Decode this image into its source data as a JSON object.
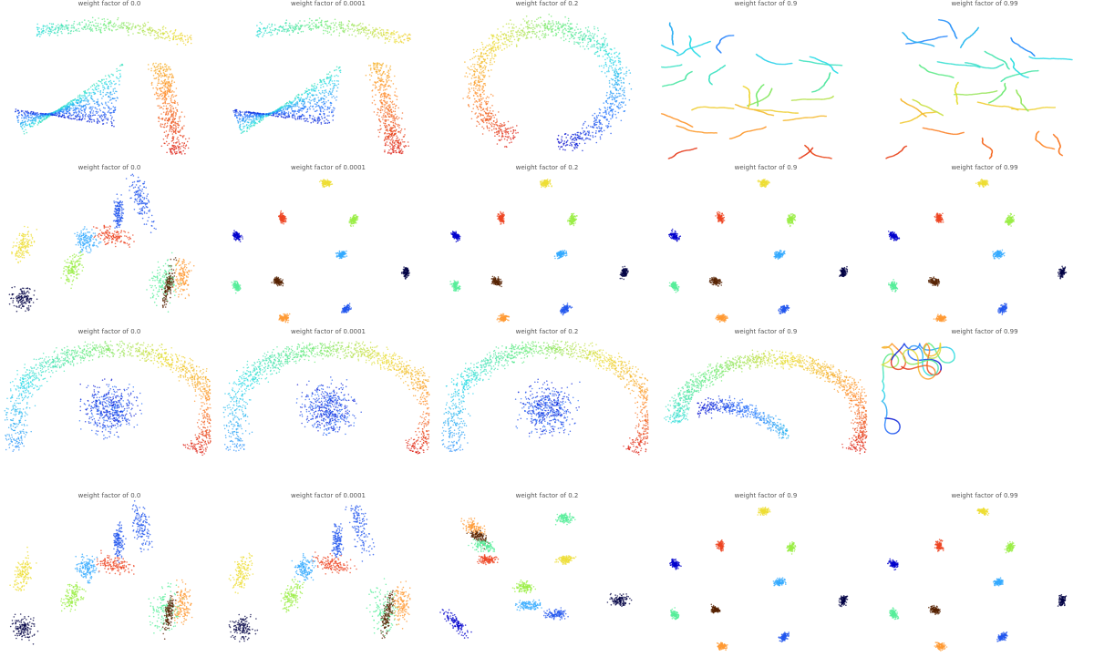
{
  "chart_data": [
    {
      "type": "scatter",
      "title": "weight factor of 0.0",
      "shape": "arch",
      "row": 0,
      "col": 0
    },
    {
      "type": "scatter",
      "title": "weight factor of 0.0001",
      "shape": "arch",
      "row": 0,
      "col": 1
    },
    {
      "type": "scatter",
      "title": "weight factor of 0.2",
      "shape": "ring-open",
      "row": 0,
      "col": 2
    },
    {
      "type": "scatter",
      "title": "weight factor of 0.9",
      "shape": "worms",
      "row": 0,
      "col": 3
    },
    {
      "type": "scatter",
      "title": "weight factor of 0.99",
      "shape": "worms",
      "row": 0,
      "col": 4
    },
    {
      "type": "scatter",
      "title": "weight factor of 0.0",
      "shape": "clusters-merged",
      "row": 1,
      "col": 0
    },
    {
      "type": "scatter",
      "title": "weight factor of 0.0001",
      "shape": "clusters-separated",
      "row": 1,
      "col": 1
    },
    {
      "type": "scatter",
      "title": "weight factor of 0.2",
      "shape": "clusters-separated",
      "row": 1,
      "col": 2
    },
    {
      "type": "scatter",
      "title": "weight factor of 0.9",
      "shape": "clusters-separated",
      "row": 1,
      "col": 3
    },
    {
      "type": "scatter",
      "title": "weight factor of 0.99",
      "shape": "clusters-separated",
      "row": 1,
      "col": 4
    },
    {
      "type": "scatter",
      "title": "weight factor of 0.0",
      "shape": "swissroll",
      "row": 2,
      "col": 0
    },
    {
      "type": "scatter",
      "title": "weight factor of 0.0001",
      "shape": "swissroll",
      "row": 2,
      "col": 1
    },
    {
      "type": "scatter",
      "title": "weight factor of 0.2",
      "shape": "swissroll",
      "row": 2,
      "col": 2
    },
    {
      "type": "scatter",
      "title": "weight factor of 0.9",
      "shape": "swissroll-open",
      "row": 2,
      "col": 3
    },
    {
      "type": "scatter",
      "title": "weight factor of 0.99",
      "shape": "curve",
      "row": 2,
      "col": 4
    },
    {
      "type": "scatter",
      "title": "weight factor of 0.0",
      "shape": "clusters-merged",
      "row": 3,
      "col": 0
    },
    {
      "type": "scatter",
      "title": "weight factor of 0.0001",
      "shape": "clusters-merged",
      "row": 3,
      "col": 1
    },
    {
      "type": "scatter",
      "title": "weight factor of 0.2",
      "shape": "clusters-semi",
      "row": 3,
      "col": 2
    },
    {
      "type": "scatter",
      "title": "weight factor of 0.9",
      "shape": "clusters-separated",
      "row": 3,
      "col": 3
    },
    {
      "type": "scatter",
      "title": "weight factor of 0.99",
      "shape": "clusters-separated",
      "row": 3,
      "col": 4
    }
  ],
  "colors": {
    "palette": [
      "#0000cc",
      "#2255ee",
      "#33aaff",
      "#33ddcc",
      "#55ee99",
      "#99ee44",
      "#eedd33",
      "#ff9933",
      "#ee4422",
      "#cc0000",
      "#552200",
      "#000044"
    ]
  }
}
